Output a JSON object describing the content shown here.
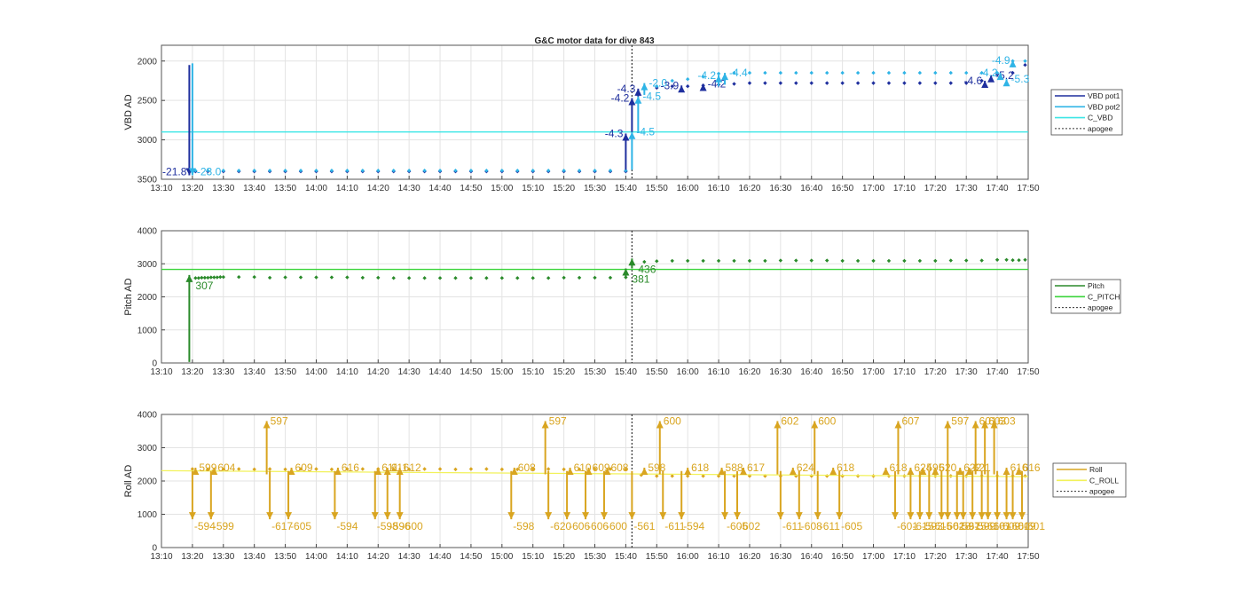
{
  "figure_title": "G&C motor data for dive 843",
  "colors": {
    "vbd_pot1": "#1f2f9e",
    "vbd_pot2": "#2fb4e6",
    "c_vbd": "#3ee6e6",
    "pitch": "#2a8a2a",
    "c_pitch": "#3bd43b",
    "roll": "#d9a520",
    "c_roll": "#f2f25a",
    "apogee": "#333333",
    "grid": "#e3e3e3"
  },
  "x_ticks": [
    "13:10",
    "13:20",
    "13:30",
    "13:40",
    "13:50",
    "14:00",
    "14:10",
    "14:20",
    "14:30",
    "14:40",
    "14:50",
    "15:00",
    "15:10",
    "15:20",
    "15:30",
    "15:40",
    "15:50",
    "16:00",
    "16:10",
    "16:20",
    "16:30",
    "16:40",
    "16:50",
    "17:00",
    "17:10",
    "17:20",
    "17:30",
    "17:40",
    "17:50"
  ],
  "chart_data": [
    {
      "type": "line",
      "title": "G&C motor data for dive 843",
      "xlabel": "",
      "ylabel": "VBD AD",
      "xlim": [
        "13:10",
        "17:50"
      ],
      "ylim": [
        3500,
        1800
      ],
      "y_reversed": true,
      "yticks": [
        2000,
        2500,
        3000,
        3500
      ],
      "grid": true,
      "legend_position": "right",
      "apogee_x": "15:42",
      "series": [
        {
          "name": "VBD pot1",
          "x": [
            "13:21",
            "13:25",
            "13:30",
            "13:35",
            "13:40",
            "13:45",
            "13:50",
            "13:55",
            "14:00",
            "14:05",
            "14:10",
            "14:15",
            "14:20",
            "14:25",
            "14:30",
            "14:35",
            "14:40",
            "14:45",
            "14:50",
            "14:55",
            "15:00",
            "15:05",
            "15:10",
            "15:15",
            "15:20",
            "15:25",
            "15:30",
            "15:35",
            "15:40",
            "15:50",
            "15:55",
            "16:00",
            "16:05",
            "16:10",
            "16:15",
            "16:20",
            "16:25",
            "16:30",
            "16:35",
            "16:40",
            "16:45",
            "16:50",
            "16:55",
            "17:00",
            "17:05",
            "17:10",
            "17:15",
            "17:20",
            "17:25",
            "17:30",
            "17:35",
            "17:40",
            "17:45",
            "17:49"
          ],
          "values": [
            3400,
            3400,
            3400,
            3400,
            3400,
            3400,
            3400,
            3400,
            3400,
            3400,
            3400,
            3400,
            3400,
            3400,
            3400,
            3400,
            3400,
            3400,
            3400,
            3400,
            3400,
            3400,
            3400,
            3400,
            3400,
            3400,
            3400,
            3400,
            3400,
            2340,
            2320,
            2320,
            2310,
            2300,
            2290,
            2280,
            2280,
            2280,
            2280,
            2280,
            2280,
            2280,
            2280,
            2280,
            2280,
            2280,
            2280,
            2280,
            2280,
            2280,
            2250,
            2170,
            2150,
            2050
          ]
        },
        {
          "name": "VBD pot2",
          "x": [
            "13:21",
            "13:25",
            "13:30",
            "13:35",
            "13:40",
            "13:45",
            "13:50",
            "13:55",
            "14:00",
            "14:05",
            "14:10",
            "14:15",
            "14:20",
            "14:25",
            "14:30",
            "14:35",
            "14:40",
            "14:45",
            "14:50",
            "14:55",
            "15:00",
            "15:05",
            "15:10",
            "15:15",
            "15:20",
            "15:25",
            "15:30",
            "15:35",
            "15:40",
            "15:50",
            "15:55",
            "16:00",
            "16:05",
            "16:10",
            "16:15",
            "16:20",
            "16:25",
            "16:30",
            "16:35",
            "16:40",
            "16:45",
            "16:50",
            "16:55",
            "17:00",
            "17:05",
            "17:10",
            "17:15",
            "17:20",
            "17:25",
            "17:30",
            "17:35",
            "17:40",
            "17:45",
            "17:49"
          ],
          "values": [
            3390,
            3390,
            3390,
            3390,
            3390,
            3390,
            3390,
            3390,
            3390,
            3390,
            3390,
            3390,
            3390,
            3390,
            3390,
            3390,
            3390,
            3390,
            3390,
            3390,
            3390,
            3390,
            3390,
            3390,
            3390,
            3390,
            3390,
            3390,
            3390,
            2320,
            2250,
            2230,
            2200,
            2160,
            2150,
            2150,
            2150,
            2150,
            2150,
            2150,
            2150,
            2150,
            2150,
            2150,
            2150,
            2150,
            2150,
            2150,
            2150,
            2150,
            2150,
            2150,
            2000,
            2000
          ]
        },
        {
          "name": "C_VBD",
          "x": [
            "13:10",
            "17:50"
          ],
          "values": [
            2900,
            2900
          ]
        }
      ],
      "events": [
        {
          "x": "13:19",
          "label": "-21.8",
          "series": "VBD pot1",
          "from": 2050,
          "to": 3450
        },
        {
          "x": "13:20",
          "label": "-23.0",
          "series": "VBD pot2",
          "from": 2030,
          "to": 3450
        },
        {
          "x": "15:40",
          "label": "-4.3",
          "series": "VBD pot1",
          "from": 3380,
          "to": 2920
        },
        {
          "x": "15:42",
          "label": "-4.5",
          "series": "VBD pot2",
          "from": 3380,
          "to": 2900
        },
        {
          "x": "15:42",
          "label": "-4.2",
          "series": "VBD pot1",
          "from": 2900,
          "to": 2470
        },
        {
          "x": "15:44",
          "label": "-4.5",
          "series": "VBD pot2",
          "from": 2900,
          "to": 2450
        },
        {
          "x": "15:44",
          "label": "-4.3",
          "series": "VBD pot1",
          "from": 2450,
          "to": 2350
        },
        {
          "x": "15:46",
          "label": "-2.0",
          "series": "VBD pot2",
          "from": 2430,
          "to": 2280
        },
        {
          "x": "15:58",
          "label": "-3.9",
          "series": "VBD pot1",
          "from": 2360,
          "to": 2310
        },
        {
          "x": "16:05",
          "label": "-4.2",
          "series": "VBD pot1",
          "from": 2350,
          "to": 2290
        },
        {
          "x": "16:10",
          "label": "-4.2",
          "series": "VBD pot2",
          "from": 2320,
          "to": 2180
        },
        {
          "x": "16:12",
          "label": "-4.4",
          "series": "VBD pot2",
          "from": 2300,
          "to": 2150
        },
        {
          "x": "17:36",
          "label": "-4.6",
          "series": "VBD pot1",
          "from": 2290,
          "to": 2250
        },
        {
          "x": "17:38",
          "label": "-5.2",
          "series": "VBD pot1",
          "from": 2250,
          "to": 2180
        },
        {
          "x": "17:41",
          "label": "-4.2",
          "series": "VBD pot2",
          "from": 2200,
          "to": 2150
        },
        {
          "x": "17:43",
          "label": "-5.3",
          "series": "VBD pot2",
          "from": 2260,
          "to": 2230
        },
        {
          "x": "17:45",
          "label": "-4.9",
          "series": "VBD pot2",
          "from": 2080,
          "to": 1990
        }
      ]
    },
    {
      "type": "line",
      "xlabel": "",
      "ylabel": "Pitch AD",
      "xlim": [
        "13:10",
        "17:50"
      ],
      "ylim": [
        0,
        4000
      ],
      "yticks": [
        0,
        1000,
        2000,
        3000,
        4000
      ],
      "grid": true,
      "legend_position": "right",
      "apogee_x": "15:42",
      "series": [
        {
          "name": "Pitch",
          "x": [
            "13:21",
            "13:22",
            "13:23",
            "13:24",
            "13:25",
            "13:26",
            "13:27",
            "13:28",
            "13:29",
            "13:30",
            "13:35",
            "13:40",
            "13:45",
            "13:50",
            "13:55",
            "14:00",
            "14:05",
            "14:10",
            "14:15",
            "14:20",
            "14:25",
            "14:30",
            "14:35",
            "14:40",
            "14:45",
            "14:50",
            "14:55",
            "15:00",
            "15:05",
            "15:10",
            "15:15",
            "15:20",
            "15:25",
            "15:30",
            "15:35",
            "15:40",
            "15:46",
            "15:50",
            "15:55",
            "16:00",
            "16:05",
            "16:10",
            "16:15",
            "16:20",
            "16:25",
            "16:30",
            "16:35",
            "16:40",
            "16:45",
            "16:50",
            "16:55",
            "17:00",
            "17:05",
            "17:10",
            "17:15",
            "17:20",
            "17:25",
            "17:30",
            "17:35",
            "17:40",
            "17:43",
            "17:45",
            "17:47",
            "17:49"
          ],
          "values": [
            2570,
            2570,
            2580,
            2580,
            2580,
            2590,
            2590,
            2590,
            2600,
            2600,
            2600,
            2600,
            2580,
            2590,
            2590,
            2590,
            2590,
            2590,
            2580,
            2580,
            2570,
            2570,
            2570,
            2570,
            2570,
            2570,
            2570,
            2570,
            2570,
            2570,
            2570,
            2580,
            2580,
            2580,
            2580,
            2590,
            3060,
            3080,
            3090,
            3090,
            3090,
            3090,
            3090,
            3090,
            3090,
            3100,
            3100,
            3100,
            3100,
            3090,
            3090,
            3090,
            3090,
            3090,
            3090,
            3090,
            3100,
            3100,
            3100,
            3120,
            3120,
            3110,
            3110,
            3120
          ]
        },
        {
          "name": "C_PITCH",
          "x": [
            "13:10",
            "17:50"
          ],
          "values": [
            2830,
            2830
          ]
        }
      ],
      "events": [
        {
          "x": "13:19",
          "label": "307",
          "from": 30,
          "to": 2660
        },
        {
          "x": "15:40",
          "label": "381",
          "from": 2580,
          "to": 2860
        },
        {
          "x": "15:42",
          "label": "436",
          "from": 2860,
          "to": 3160
        }
      ]
    },
    {
      "type": "line",
      "xlabel": "",
      "ylabel": "Roll AD",
      "xlim": [
        "13:10",
        "17:50"
      ],
      "ylim": [
        0,
        4000
      ],
      "yticks": [
        0,
        1000,
        2000,
        3000,
        4000
      ],
      "grid": true,
      "legend_position": "right",
      "apogee_x": "15:42",
      "series": [
        {
          "name": "Roll",
          "x": [
            "13:20",
            "13:25",
            "13:30",
            "13:35",
            "13:40",
            "13:45",
            "13:50",
            "13:55",
            "14:00",
            "14:05",
            "14:10",
            "14:15",
            "14:20",
            "14:25",
            "14:30",
            "14:35",
            "14:40",
            "14:45",
            "14:50",
            "14:55",
            "15:00",
            "15:05",
            "15:10",
            "15:15",
            "15:20",
            "15:25",
            "15:30",
            "15:35",
            "15:40",
            "15:45",
            "15:50",
            "15:55",
            "16:00",
            "16:05",
            "16:10",
            "16:15",
            "16:20",
            "16:25",
            "16:30",
            "16:35",
            "16:40",
            "16:45",
            "16:50",
            "16:55",
            "17:00",
            "17:05",
            "17:10",
            "17:15",
            "17:20",
            "17:25",
            "17:30",
            "17:35",
            "17:40",
            "17:45",
            "17:49"
          ],
          "values": [
            2360,
            2350,
            2350,
            2360,
            2350,
            2360,
            2350,
            2360,
            2360,
            2350,
            2360,
            2360,
            2360,
            2350,
            2350,
            2360,
            2360,
            2350,
            2360,
            2360,
            2350,
            2350,
            2360,
            2360,
            2350,
            2350,
            2360,
            2360,
            2350,
            2180,
            2150,
            2150,
            2150,
            2150,
            2150,
            2150,
            2150,
            2150,
            2150,
            2150,
            2150,
            2150,
            2150,
            2150,
            2150,
            2150,
            2150,
            2150,
            2150,
            2150,
            2150,
            2150,
            2150,
            2150,
            2150
          ]
        },
        {
          "name": "C_ROLL",
          "x": [
            "13:10",
            "17:50"
          ],
          "values": [
            2310,
            2130
          ]
        }
      ],
      "upper_labels": [
        {
          "x": "13:21",
          "label": "599"
        },
        {
          "x": "13:27",
          "label": "604"
        },
        {
          "x": "13:44",
          "label": "597"
        },
        {
          "x": "13:52",
          "label": "609"
        },
        {
          "x": "14:07",
          "label": "616"
        },
        {
          "x": "14:20",
          "label": "611"
        },
        {
          "x": "14:23",
          "label": "611"
        },
        {
          "x": "14:27",
          "label": "612"
        },
        {
          "x": "15:04",
          "label": "608"
        },
        {
          "x": "15:14",
          "label": "597"
        },
        {
          "x": "15:22",
          "label": "610"
        },
        {
          "x": "15:28",
          "label": "609"
        },
        {
          "x": "15:34",
          "label": "608"
        },
        {
          "x": "15:46",
          "label": "598"
        },
        {
          "x": "15:51",
          "label": "600"
        },
        {
          "x": "16:00",
          "label": "618"
        },
        {
          "x": "16:11",
          "label": "588"
        },
        {
          "x": "16:18",
          "label": "617"
        },
        {
          "x": "16:29",
          "label": "602"
        },
        {
          "x": "16:34",
          "label": "624"
        },
        {
          "x": "16:41",
          "label": "600"
        },
        {
          "x": "16:47",
          "label": "618"
        },
        {
          "x": "17:04",
          "label": "618"
        },
        {
          "x": "17:08",
          "label": "607"
        },
        {
          "x": "17:12",
          "label": "624"
        },
        {
          "x": "17:16",
          "label": "595"
        },
        {
          "x": "17:20",
          "label": "620"
        },
        {
          "x": "17:24",
          "label": "597"
        },
        {
          "x": "17:28",
          "label": "622"
        },
        {
          "x": "17:31",
          "label": "621"
        },
        {
          "x": "17:33",
          "label": "601"
        },
        {
          "x": "17:36",
          "label": "603"
        },
        {
          "x": "17:39",
          "label": "603"
        },
        {
          "x": "17:43",
          "label": "616"
        },
        {
          "x": "17:47",
          "label": "616"
        }
      ],
      "lower_labels": [
        {
          "x": "13:20",
          "label": "-594"
        },
        {
          "x": "13:26",
          "label": "-599"
        },
        {
          "x": "13:45",
          "label": "-617"
        },
        {
          "x": "13:51",
          "label": "-605"
        },
        {
          "x": "14:06",
          "label": "-594"
        },
        {
          "x": "14:19",
          "label": "-598"
        },
        {
          "x": "14:23",
          "label": "-596"
        },
        {
          "x": "14:27",
          "label": "-600"
        },
        {
          "x": "15:03",
          "label": "-598"
        },
        {
          "x": "15:15",
          "label": "-620"
        },
        {
          "x": "15:21",
          "label": "-606"
        },
        {
          "x": "15:27",
          "label": "-606"
        },
        {
          "x": "15:33",
          "label": "-600"
        },
        {
          "x": "15:42",
          "label": "-561"
        },
        {
          "x": "15:52",
          "label": "-611"
        },
        {
          "x": "15:58",
          "label": "-594"
        },
        {
          "x": "16:12",
          "label": "-605"
        },
        {
          "x": "16:16",
          "label": "-602"
        },
        {
          "x": "16:30",
          "label": "-611"
        },
        {
          "x": "16:36",
          "label": "-608"
        },
        {
          "x": "16:42",
          "label": "-611"
        },
        {
          "x": "16:49",
          "label": "-605"
        },
        {
          "x": "17:07",
          "label": "-601"
        },
        {
          "x": "17:12",
          "label": "-615"
        },
        {
          "x": "17:15",
          "label": "-593"
        },
        {
          "x": "17:18",
          "label": "-615"
        },
        {
          "x": "17:22",
          "label": "-602"
        },
        {
          "x": "17:24",
          "label": "-618"
        },
        {
          "x": "17:27",
          "label": "-597"
        },
        {
          "x": "17:29",
          "label": "-615"
        },
        {
          "x": "17:32",
          "label": "-599"
        },
        {
          "x": "17:35",
          "label": "-616"
        },
        {
          "x": "17:37",
          "label": "-601"
        },
        {
          "x": "17:40",
          "label": "-609"
        },
        {
          "x": "17:43",
          "label": "-601"
        },
        {
          "x": "17:45",
          "label": "-609"
        },
        {
          "x": "17:48",
          "label": "-601"
        }
      ]
    }
  ]
}
